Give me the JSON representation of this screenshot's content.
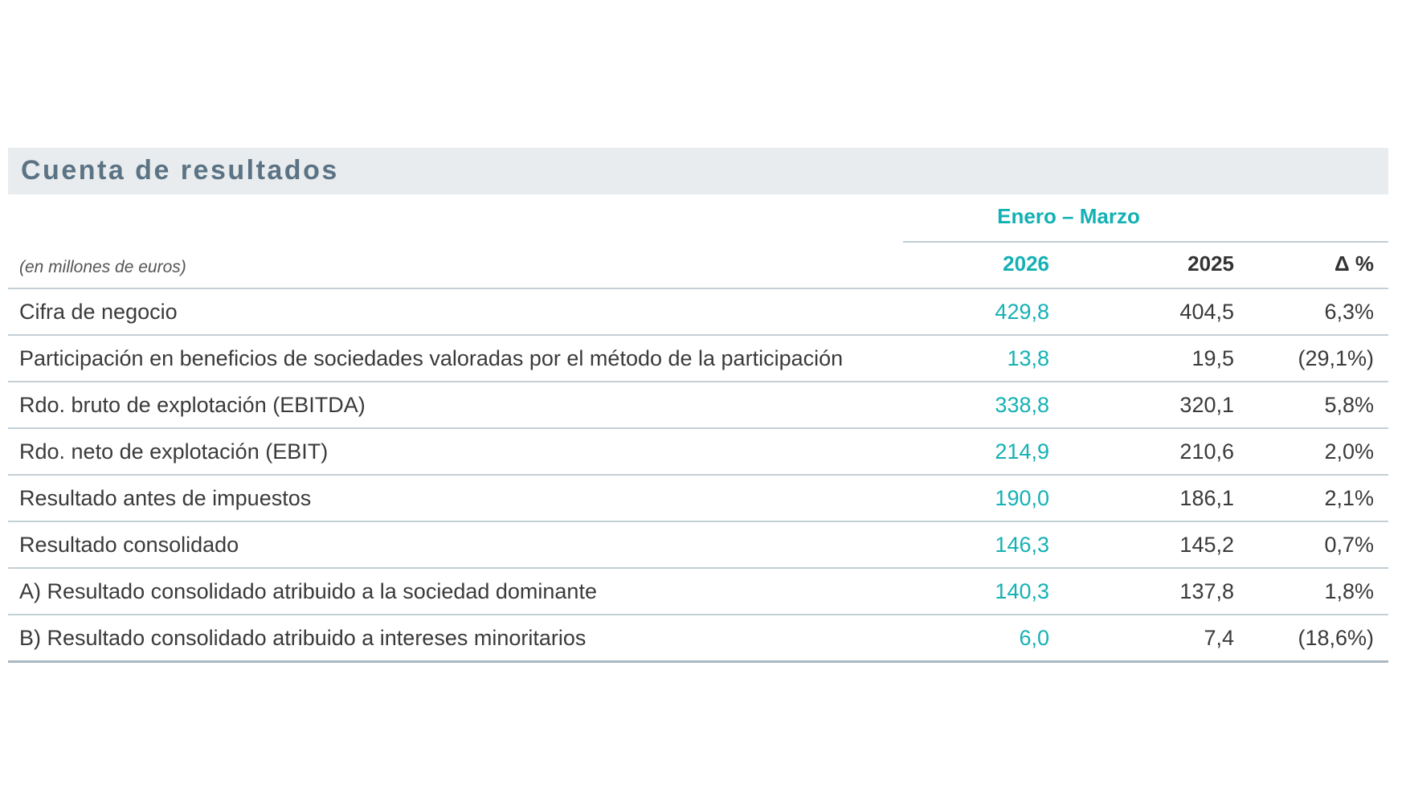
{
  "title": "Cuenta de resultados",
  "period_label": "Enero – Marzo",
  "unit_note": "(en millones de euros)",
  "columns": {
    "y2026": "2026",
    "y2025": "2025",
    "delta": "Δ %"
  },
  "rows": [
    {
      "label": "Cifra de negocio",
      "v2026": "429,8",
      "v2025": "404,5",
      "delta": "6,3%"
    },
    {
      "label": "Participación en beneficios de sociedades valoradas por el método de la participación",
      "v2026": "13,8",
      "v2025": "19,5",
      "delta": "(29,1%)"
    },
    {
      "label": "Rdo. bruto de explotación (EBITDA)",
      "v2026": "338,8",
      "v2025": "320,1",
      "delta": "5,8%"
    },
    {
      "label": "Rdo. neto de explotación (EBIT)",
      "v2026": "214,9",
      "v2025": "210,6",
      "delta": "2,0%"
    },
    {
      "label": "Resultado antes de impuestos",
      "v2026": "190,0",
      "v2025": "186,1",
      "delta": "2,1%"
    },
    {
      "label": "Resultado consolidado",
      "v2026": "146,3",
      "v2025": "145,2",
      "delta": "0,7%"
    },
    {
      "label": "A) Resultado consolidado atribuido a la sociedad dominante",
      "v2026": "140,3",
      "v2025": "137,8",
      "delta": "1,8%"
    },
    {
      "label": "B) Resultado consolidado atribuido a intereses minoritarios",
      "v2026": "6,0",
      "v2025": "7,4",
      "delta": "(18,6%)"
    }
  ],
  "colors": {
    "accent": "#14b1b4",
    "title": "#5b7384",
    "title_bg": "#e8ecee",
    "rule": "#c4cfd6"
  }
}
